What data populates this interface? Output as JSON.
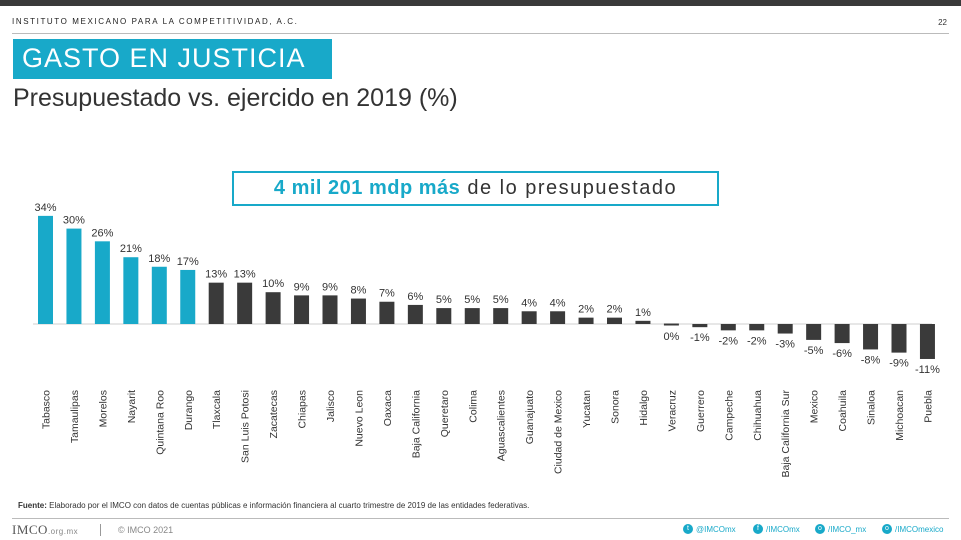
{
  "header": {
    "org": "INSTITUTO MEXICANO PARA LA COMPETITIVIDAD, A.C.",
    "page_number": "22"
  },
  "title": "GASTO EN JUSTICIA",
  "subtitle": "Presupuestado vs. ejercido en 2019 (%)",
  "callout": {
    "highlight": "4 mil 201 mdp más",
    "rest": " de lo presupuestado"
  },
  "source": {
    "label": "Fuente:",
    "text": " Elaborado por el IMCO con datos de cuentas públicas e información financiera al cuarto trimestre de 2019 de las entidades federativas."
  },
  "footer": {
    "logo": "IMCO",
    "logo_sub": ".org.mx",
    "copyright": "© IMCO 2021",
    "social": [
      {
        "icon": "twitter-icon",
        "glyph": "t",
        "handle": "@IMCOmx"
      },
      {
        "icon": "facebook-icon",
        "glyph": "f",
        "handle": "/IMCOmx"
      },
      {
        "icon": "instagram-icon",
        "glyph": "o",
        "handle": "/IMCO_mx"
      },
      {
        "icon": "instagram-icon",
        "glyph": "o",
        "handle": "/IMCOmexico"
      }
    ]
  },
  "colors": {
    "accent": "#18a9c9",
    "dark_bar": "#3a3a3a"
  },
  "chart_data": {
    "type": "bar",
    "categories": [
      "Tabasco",
      "Tamaulipas",
      "Morelos",
      "Nayarit",
      "Quintana Roo",
      "Durango",
      "Tlaxcala",
      "San Luis Potosi",
      "Zacatecas",
      "Chiapas",
      "Jalisco",
      "Nuevo Leon",
      "Oaxaca",
      "Baja California",
      "Queretaro",
      "Colima",
      "Aguascalientes",
      "Guanajuato",
      "Ciudad de Mexico",
      "Yucatan",
      "Sonora",
      "Hidalgo",
      "Veracruz",
      "Guerrero",
      "Campeche",
      "Chihuahua",
      "Baja California Sur",
      "Mexico",
      "Coahuila",
      "Sinaloa",
      "Michoacan",
      "Puebla"
    ],
    "values": [
      34,
      30,
      26,
      21,
      18,
      17,
      13,
      13,
      10,
      9,
      9,
      8,
      7,
      6,
      5,
      5,
      5,
      4,
      4,
      2,
      2,
      1,
      0,
      -1,
      -2,
      -2,
      -3,
      -5,
      -6,
      -8,
      -9,
      -11
    ],
    "labels": [
      "34%",
      "30%",
      "26%",
      "21%",
      "18%",
      "17%",
      "13%",
      "13%",
      "10%",
      "9%",
      "9%",
      "8%",
      "7%",
      "6%",
      "5%",
      "5%",
      "5%",
      "4%",
      "4%",
      "2%",
      "2%",
      "1%",
      "0%",
      "-1%",
      "-2%",
      "-2%",
      "-3%",
      "-5%",
      "-6%",
      "-8%",
      "-9%",
      "-11%"
    ],
    "highlight_count": 6,
    "ylim": [
      -11,
      34
    ],
    "grid": false,
    "legend": "none"
  }
}
